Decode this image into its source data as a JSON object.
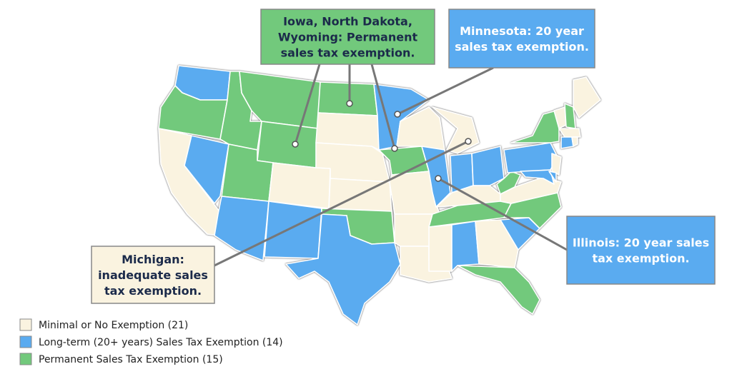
{
  "callouts": [
    {
      "lines": [
        "Iowa, North Dakota,",
        "Wyoming: Permanent",
        "sales tax exemption."
      ],
      "color": "#72c97c",
      "text_color": "#1b2a4a"
    },
    {
      "lines": [
        "Minnesota: 20 year",
        "sales tax exemption."
      ],
      "color": "#5aabf0",
      "text_color": "#ffffff"
    },
    {
      "lines": [
        "Illinois: 20 year sales",
        "tax exemption."
      ],
      "color": "#5aabf0",
      "text_color": "#ffffff"
    },
    {
      "lines": [
        "Michigan:",
        "inadequate sales",
        "tax exemption."
      ],
      "color": "#faf3e0",
      "text_color": "#1b2a4a"
    }
  ],
  "legend": [
    {
      "label": "Minimal or No Exemption (21)",
      "color": "#faf3e0"
    },
    {
      "label": "Long-term (20+ years) Sales Tax Exemption (14)",
      "color": "#5aabf0"
    },
    {
      "label": "Permanent Sales Tax Exemption (15)",
      "color": "#72c97c"
    }
  ]
}
